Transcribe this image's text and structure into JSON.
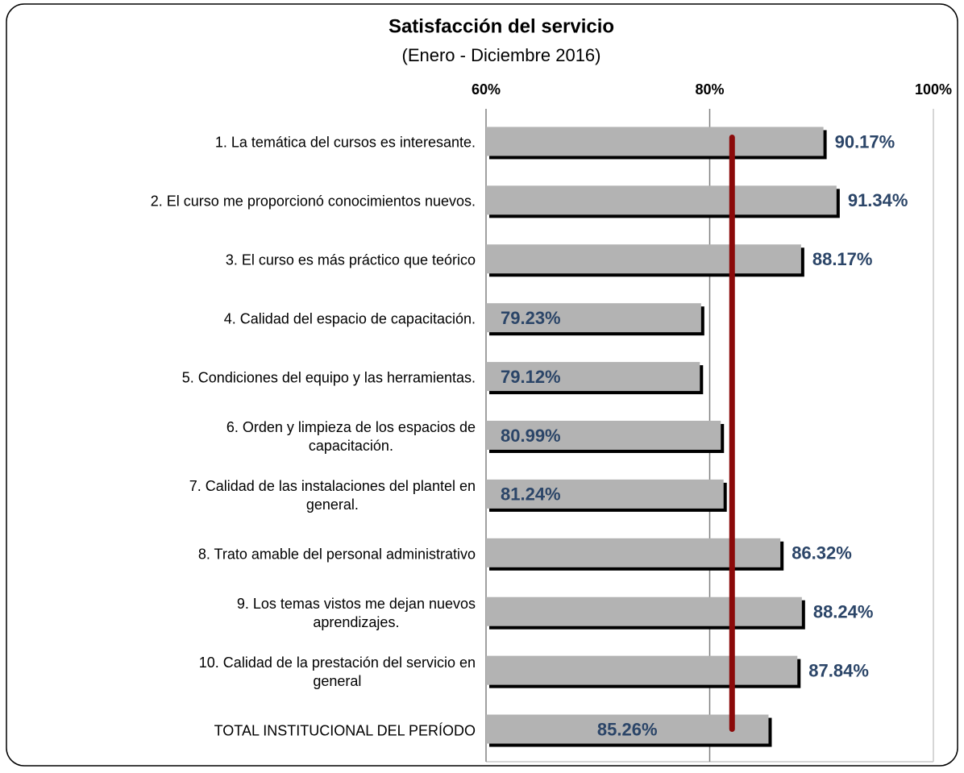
{
  "chart_data": {
    "type": "barh",
    "title": "Satisfacción del servicio",
    "subtitle": "(Enero - Diciembre 2016)",
    "categories": [
      "1. La temática del cursos es interesante.",
      "2. El curso me proporcionó conocimientos nuevos.",
      "3. El curso es más práctico que teórico",
      "4. Calidad del espacio de capacitación.",
      "5. Condiciones del equipo y las herramientas.",
      "6. Orden y limpieza de los espacios de\ncapacitación.",
      "7. Calidad de las instalaciones del plantel en\ngeneral.",
      "8. Trato amable del personal administrativo",
      "9. Los temas vistos me dejan nuevos\naprendizajes.",
      "10. Calidad de la prestación del servicio en\ngeneral",
      "TOTAL INSTITUCIONAL DEL PERÍODO"
    ],
    "values": [
      90.17,
      91.34,
      88.17,
      79.23,
      79.12,
      80.99,
      81.24,
      86.32,
      88.24,
      87.84,
      85.26
    ],
    "value_labels": [
      "90.17%",
      "91.34%",
      "88.17%",
      "79.23%",
      "79.12%",
      "80.99%",
      "81.24%",
      "86.32%",
      "88.24%",
      "87.84%",
      "85.26%"
    ],
    "color": "#b3b3b3",
    "label_color": "#2b4568",
    "reference_line": 82,
    "reference_color": "#8b0a0a",
    "xlim": [
      60,
      100
    ],
    "xticks": [
      {
        "value": 60,
        "label": "60%"
      },
      {
        "value": 80,
        "label": "80%"
      },
      {
        "value": 100,
        "label": "100%"
      }
    ],
    "grid": true
  }
}
